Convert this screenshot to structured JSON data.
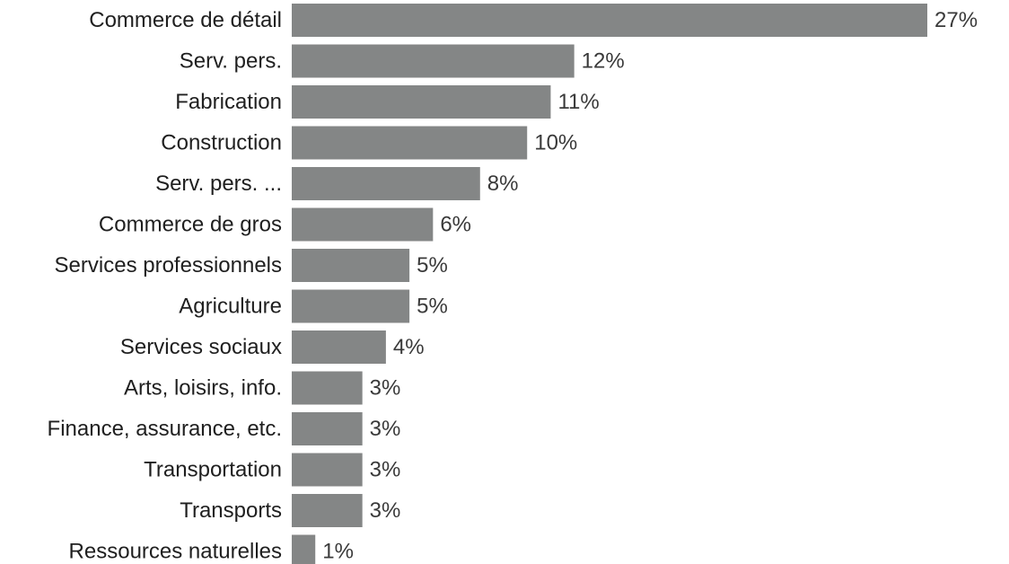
{
  "chart_data": {
    "type": "bar",
    "orientation": "horizontal",
    "categories": [
      "Commerce de détail",
      "Serv. pers.",
      "Fabrication",
      "Construction",
      "Serv. pers. ...",
      "Commerce de gros",
      "Services professionnels",
      "Agriculture",
      "Services sociaux",
      "Arts, loisirs, info.",
      "Finance, assurance, etc.",
      "Transportation",
      "Transports",
      "Ressources naturelles"
    ],
    "values": [
      27,
      12,
      11,
      10,
      8,
      6,
      5,
      5,
      4,
      3,
      3,
      3,
      3,
      1
    ],
    "value_labels": [
      "27%",
      "12%",
      "11%",
      "10%",
      "8%",
      "6%",
      "5%",
      "5%",
      "4%",
      "3%",
      "3%",
      "3%",
      "3%",
      "1%"
    ],
    "title": "",
    "xlabel": "",
    "ylabel": "",
    "xlim": [
      0,
      27
    ],
    "grid": false,
    "bar_color": "#848686"
  }
}
